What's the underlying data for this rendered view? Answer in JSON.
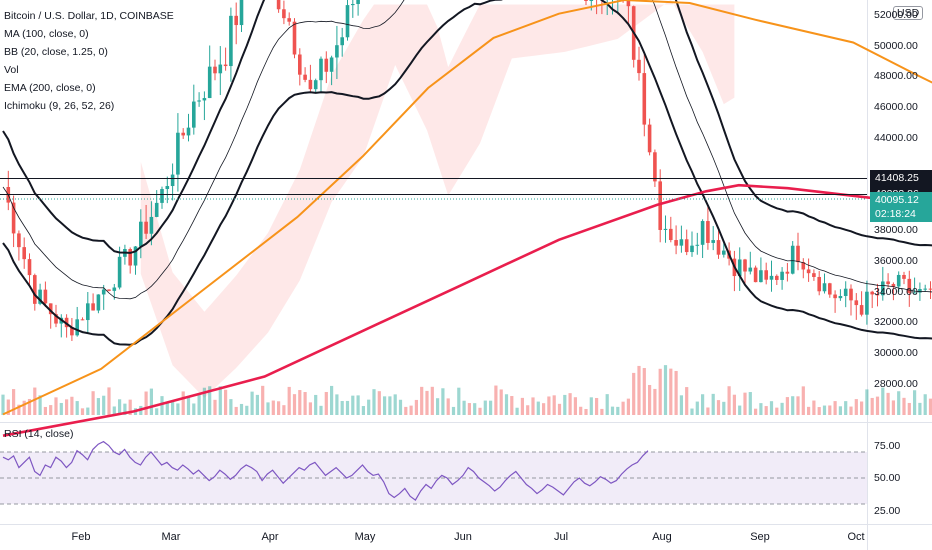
{
  "legend": {
    "title": "Bitcoin / U.S. Dollar, 1D, COINBASE",
    "indicators": [
      "MA (100, close, 0)",
      "BB (20, close, 1.25, 0)",
      "Vol",
      "EMA (200, close, 0)",
      "Ichimoku (9, 26, 52, 26)"
    ],
    "rsi": "RSI (14, close)"
  },
  "currency_badge": "USD",
  "price_tags": {
    "level_high": "41408.25",
    "level_low": "40383.86",
    "last_price": "40095.12",
    "countdown": "02:18:24"
  },
  "colors": {
    "up": "#26a69a",
    "down": "#ef5350",
    "ema200": "#e91e4d",
    "ma100": "#f7931a",
    "bb": "#131722",
    "ichimoku_fill_up": "#fff8d0",
    "ichimoku_fill_down": "#fde0e0",
    "rsi_line": "#7e57c2",
    "rsi_band": "#ede7f6",
    "last_price": "#26a69a"
  },
  "chart_data": {
    "type": "candlestick",
    "title": "Bitcoin / U.S. Dollar, 1D, COINBASE",
    "x_axis": {
      "ticks": [
        "Feb",
        "Mar",
        "Apr",
        "May",
        "Jun",
        "Jul",
        "Aug",
        "Sep",
        "Oct"
      ]
    },
    "y_axis": {
      "ticks": [
        "52000.00",
        "50000.00",
        "48000.00",
        "46000.00",
        "44000.00",
        "38000.00",
        "36000.00",
        "34000.00",
        "32000.00",
        "30000.00",
        "28000.00"
      ],
      "range": [
        25500,
        53300
      ]
    },
    "horizontal_levels": [
      41408.25,
      40383.86
    ],
    "last_price": 40095.12,
    "ema200": [
      [
        0,
        24600
      ],
      [
        40,
        26200
      ],
      [
        80,
        28500
      ],
      [
        110,
        31500
      ],
      [
        140,
        34500
      ],
      [
        170,
        37500
      ],
      [
        200,
        39800
      ],
      [
        215,
        40700
      ],
      [
        225,
        41100
      ],
      [
        240,
        40900
      ],
      [
        260,
        40400
      ],
      [
        280,
        39900
      ],
      [
        300,
        39600
      ],
      [
        320,
        39200
      ],
      [
        340,
        38800
      ],
      [
        345,
        38700
      ]
    ],
    "ma100": [
      [
        0,
        26000
      ],
      [
        30,
        29000
      ],
      [
        60,
        34000
      ],
      [
        90,
        39000
      ],
      [
        110,
        43000
      ],
      [
        130,
        47500
      ],
      [
        150,
        50800
      ],
      [
        170,
        52400
      ],
      [
        190,
        53300
      ],
      [
        210,
        53100
      ],
      [
        230,
        52000
      ],
      [
        260,
        50500
      ],
      [
        280,
        48300
      ],
      [
        300,
        46200
      ],
      [
        320,
        43800
      ],
      [
        340,
        41500
      ],
      [
        345,
        40600
      ]
    ],
    "rsi": {
      "ticks": [
        "75.00",
        "50.00",
        "25.00"
      ],
      "band": [
        30,
        70
      ],
      "values": [
        66,
        64,
        67,
        58,
        62,
        66,
        55,
        52,
        60,
        58,
        66,
        63,
        58,
        62,
        71,
        68,
        64,
        72,
        76,
        78,
        75,
        70,
        68,
        72,
        66,
        62,
        60,
        66,
        70,
        65,
        60,
        62,
        58,
        56,
        60,
        57,
        53,
        56,
        52,
        48,
        51,
        56,
        53,
        49,
        52,
        57,
        60,
        58,
        55,
        48,
        53,
        56,
        51,
        46,
        50,
        54,
        58,
        56,
        60,
        62,
        57,
        52,
        55,
        58,
        54,
        50,
        52,
        56,
        60,
        55,
        52,
        53,
        47,
        38,
        35,
        38,
        42,
        36,
        33,
        40,
        45,
        42,
        48,
        52,
        50,
        45,
        48,
        52,
        58,
        55,
        50,
        47,
        44,
        40,
        43,
        48,
        52,
        55,
        50,
        45,
        42,
        38,
        41,
        45,
        43,
        40,
        37,
        42,
        47,
        50,
        46,
        44,
        47,
        51,
        49,
        46,
        48,
        53,
        57,
        60,
        62,
        67,
        71
      ]
    },
    "volume_note": "daily volume bars along bottom of price pane"
  }
}
